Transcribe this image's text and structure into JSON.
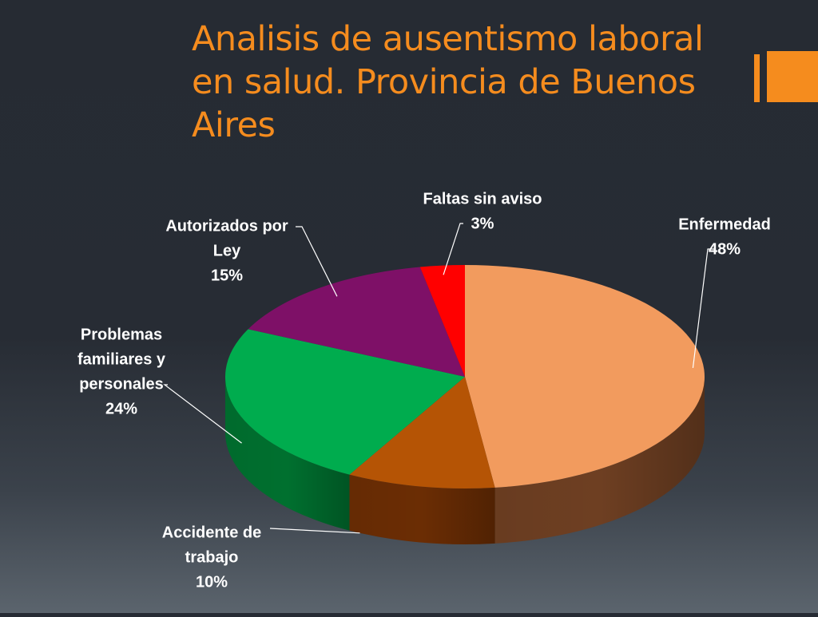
{
  "slide": {
    "title": "Analisis de ausentismo laboral en salud. Provincia de Buenos Aires"
  },
  "colors": {
    "accent": "#f58c1e",
    "background": "#272c34"
  },
  "chart_data": {
    "type": "pie",
    "style": "3d",
    "title": "",
    "labels_position": "outside-with-leader-lines",
    "legend": "none",
    "slices": [
      {
        "label": "Enfermedad",
        "value": 48,
        "value_label": "48%",
        "color": "#f29b5e",
        "side_color": "#6e3f22"
      },
      {
        "label": "Accidente de trabajo",
        "value": 10,
        "value_label": "10%",
        "color": "#b55405",
        "side_color": "#6b2d04"
      },
      {
        "label": "Problemas familiares y personales",
        "value": 24,
        "value_label": "24%",
        "color": "#00ac4e",
        "side_color": "#00702f"
      },
      {
        "label": "Autorizados por Ley",
        "value": 15,
        "value_label": "15%",
        "color": "#7e1067",
        "side_color": "#4a0a3d"
      },
      {
        "label": "Faltas sin aviso",
        "value": 3,
        "value_label": "3%",
        "color": "#ff0000",
        "side_color": "#8a0000"
      }
    ]
  }
}
